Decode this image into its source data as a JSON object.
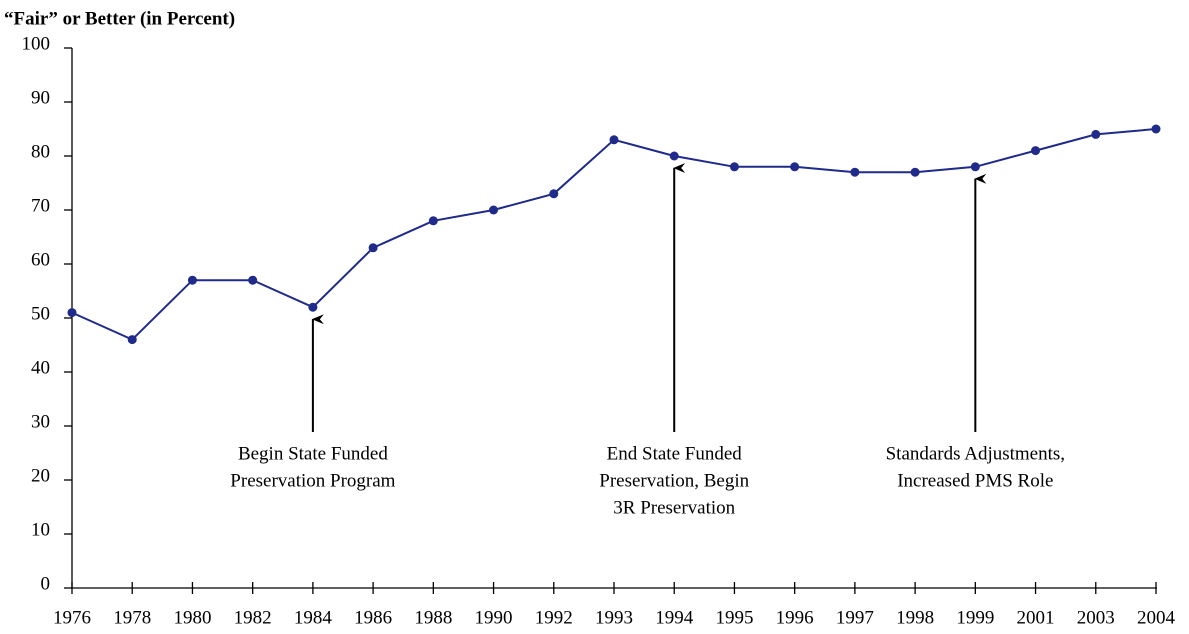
{
  "chart_data": {
    "type": "line",
    "title": "“Fair” or Better (in Percent)",
    "categories": [
      "1976",
      "1978",
      "1980",
      "1982",
      "1984",
      "1986",
      "1988",
      "1990",
      "1992",
      "1993",
      "1994",
      "1995",
      "1996",
      "1997",
      "1998",
      "1999",
      "2001",
      "2003",
      "2004"
    ],
    "series": [
      {
        "name": null,
        "color": "#1f2a8a",
        "values": [
          51,
          46,
          57,
          57,
          52,
          63,
          68,
          70,
          73,
          83,
          80,
          78,
          78,
          77,
          77,
          78,
          81,
          84,
          85
        ]
      }
    ],
    "ylim": [
      0,
      100
    ],
    "yticks": [
      0,
      10,
      20,
      30,
      40,
      50,
      60,
      70,
      80,
      90,
      100
    ],
    "grid": false,
    "annotations": [
      {
        "target": "1984",
        "lines": [
          "Begin State Funded",
          "Preservation Program"
        ]
      },
      {
        "target": "1994",
        "lines": [
          "End State Funded",
          "Preservation, Begin",
          "3R Preservation"
        ]
      },
      {
        "target": "1999",
        "lines": [
          "Standards Adjustments,",
          "Increased PMS Role"
        ]
      }
    ]
  }
}
